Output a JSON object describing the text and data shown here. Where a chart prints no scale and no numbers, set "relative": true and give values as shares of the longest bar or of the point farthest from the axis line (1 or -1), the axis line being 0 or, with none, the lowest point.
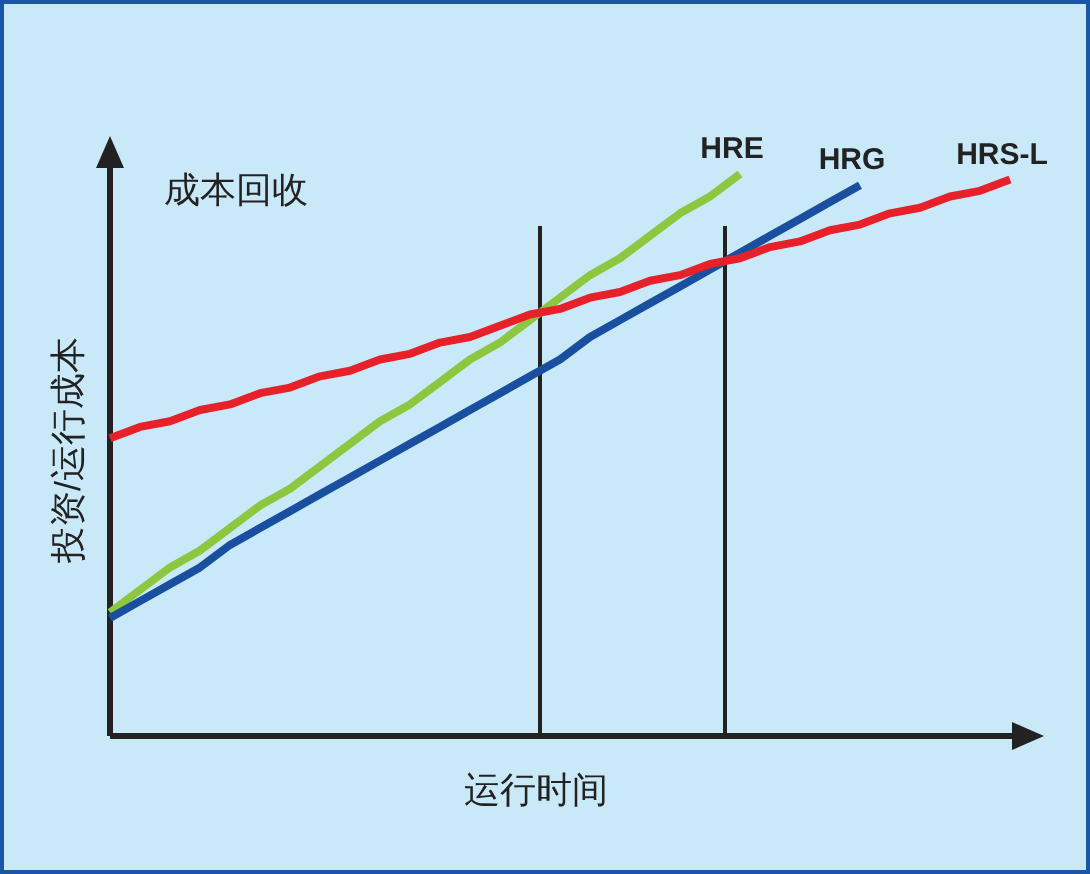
{
  "chart_data": {
    "type": "line",
    "title": "成本回收",
    "xlabel": "运行时间",
    "ylabel": "投资/运行成本",
    "relative": true,
    "categories": [
      null,
      null,
      null,
      null,
      null,
      null,
      null,
      null,
      null,
      null,
      null,
      null,
      null,
      null,
      null,
      null,
      null,
      null,
      null,
      null,
      null,
      null,
      null,
      null,
      null,
      null,
      null,
      null,
      null,
      null,
      null
    ],
    "series": [
      {
        "name": "HRE",
        "color": "#8dc63f",
        "values": [
          0.22,
          0.26,
          0.3,
          0.33,
          0.37,
          0.41,
          0.44,
          0.48,
          0.52,
          0.56,
          0.59,
          0.63,
          0.67,
          0.7,
          0.74,
          0.78,
          0.82,
          0.85,
          0.89,
          0.93,
          0.96,
          1.0,
          null,
          null,
          null,
          null,
          null,
          null,
          null,
          null,
          null
        ]
      },
      {
        "name": "HRG",
        "color": "#1a4fa0",
        "values": [
          0.21,
          0.24,
          0.27,
          0.3,
          0.34,
          0.37,
          0.4,
          0.43,
          0.46,
          0.49,
          0.52,
          0.55,
          0.58,
          0.61,
          0.64,
          0.67,
          0.71,
          0.74,
          0.77,
          0.8,
          0.83,
          0.86,
          0.89,
          0.92,
          0.95,
          0.98,
          null,
          null,
          null,
          null,
          null
        ]
      },
      {
        "name": "HRS-L",
        "color": "#e8202a",
        "values": [
          0.53,
          0.55,
          0.56,
          0.58,
          0.59,
          0.61,
          0.62,
          0.64,
          0.65,
          0.67,
          0.68,
          0.7,
          0.71,
          0.73,
          0.75,
          0.76,
          0.78,
          0.79,
          0.81,
          0.82,
          0.84,
          0.85,
          0.87,
          0.88,
          0.9,
          0.91,
          0.93,
          0.94,
          0.96,
          0.97,
          0.99
        ]
      }
    ]
  }
}
